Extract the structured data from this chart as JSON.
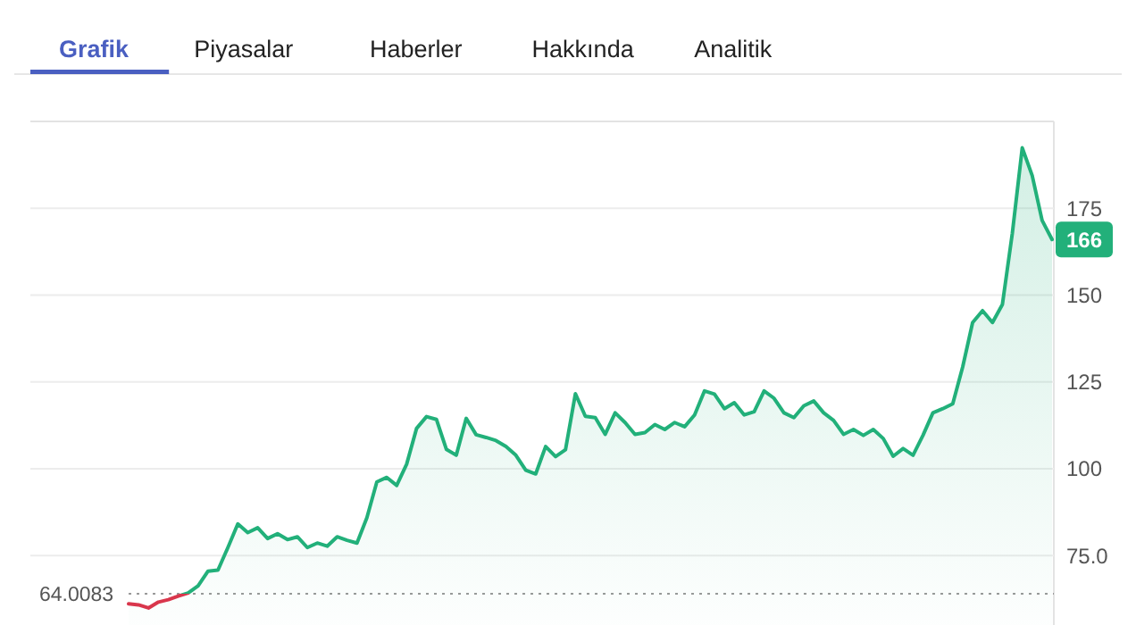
{
  "chart_data": {
    "type": "area",
    "categories": [
      null,
      null,
      null,
      null,
      null,
      null,
      null,
      null,
      null,
      null,
      null,
      null,
      null,
      null,
      null,
      null,
      null,
      null,
      null,
      null,
      null,
      null,
      null,
      null,
      null,
      null,
      null,
      null,
      null,
      null,
      null,
      null,
      null,
      null,
      null,
      null,
      null,
      null,
      null,
      null,
      null,
      null,
      null,
      null,
      null,
      null,
      null,
      null,
      null,
      null,
      null,
      null,
      null,
      null,
      null,
      null,
      null,
      null,
      null,
      null,
      null,
      null,
      null,
      null,
      null,
      null,
      null,
      null,
      null,
      null,
      null,
      null,
      null,
      null,
      null,
      null,
      null,
      null,
      null,
      null,
      null,
      null,
      null,
      null,
      null,
      null,
      null,
      null,
      null,
      null,
      null,
      null,
      null,
      null
    ],
    "series": [
      {
        "color": "#22b07a",
        "values": [
          61.1,
          60.8,
          59.9,
          61.6,
          62.3,
          63.3,
          64.2,
          66.3,
          70.5,
          70.8,
          77.3,
          84.1,
          81.6,
          83,
          79.9,
          81.3,
          79.6,
          80.4,
          77.3,
          78.6,
          77.7,
          80.4,
          79.4,
          78.6,
          85.9,
          96.2,
          97.5,
          95.2,
          101.3,
          111.6,
          115,
          114.2,
          105.6,
          103.9,
          114.5,
          109.8,
          109,
          108.1,
          106.4,
          103.9,
          99.6,
          98.5,
          106.4,
          103.5,
          105.5,
          121.6,
          115.1,
          114.7,
          109.9,
          116.1,
          113.3,
          109.9,
          110.4,
          112.7,
          111.3,
          113.3,
          112.1,
          115.5,
          122.4,
          121.5,
          117.3,
          119,
          115.5,
          116.4,
          122.4,
          120.3,
          116.1,
          114.7,
          118.1,
          119.5,
          116.1,
          113.9,
          109.9,
          111.3,
          109.6,
          111.3,
          108.7,
          103.6,
          105.8,
          103.9,
          109.6,
          116.1,
          117.3,
          118.7,
          129.3,
          142.1,
          145.5,
          142.1,
          147.3,
          167.8,
          192.4,
          184.4,
          171.5,
          166
        ]
      }
    ],
    "ylim": [
      55,
      200
    ],
    "yticks": [
      {
        "value": 75,
        "label": "75.0"
      },
      100,
      125,
      150,
      175
    ],
    "grid": "y",
    "ref_lines": [
      {
        "axis": "y",
        "value": 64.0083,
        "label": "64.0083",
        "line_style": "dotted",
        "color": "#999999"
      }
    ],
    "annotations": [
      "Grafik",
      "Piyasalar",
      "Haberler",
      "Hakkında",
      "Analitik",
      {
        "text": "166",
        "y": 166
      }
    ]
  }
}
